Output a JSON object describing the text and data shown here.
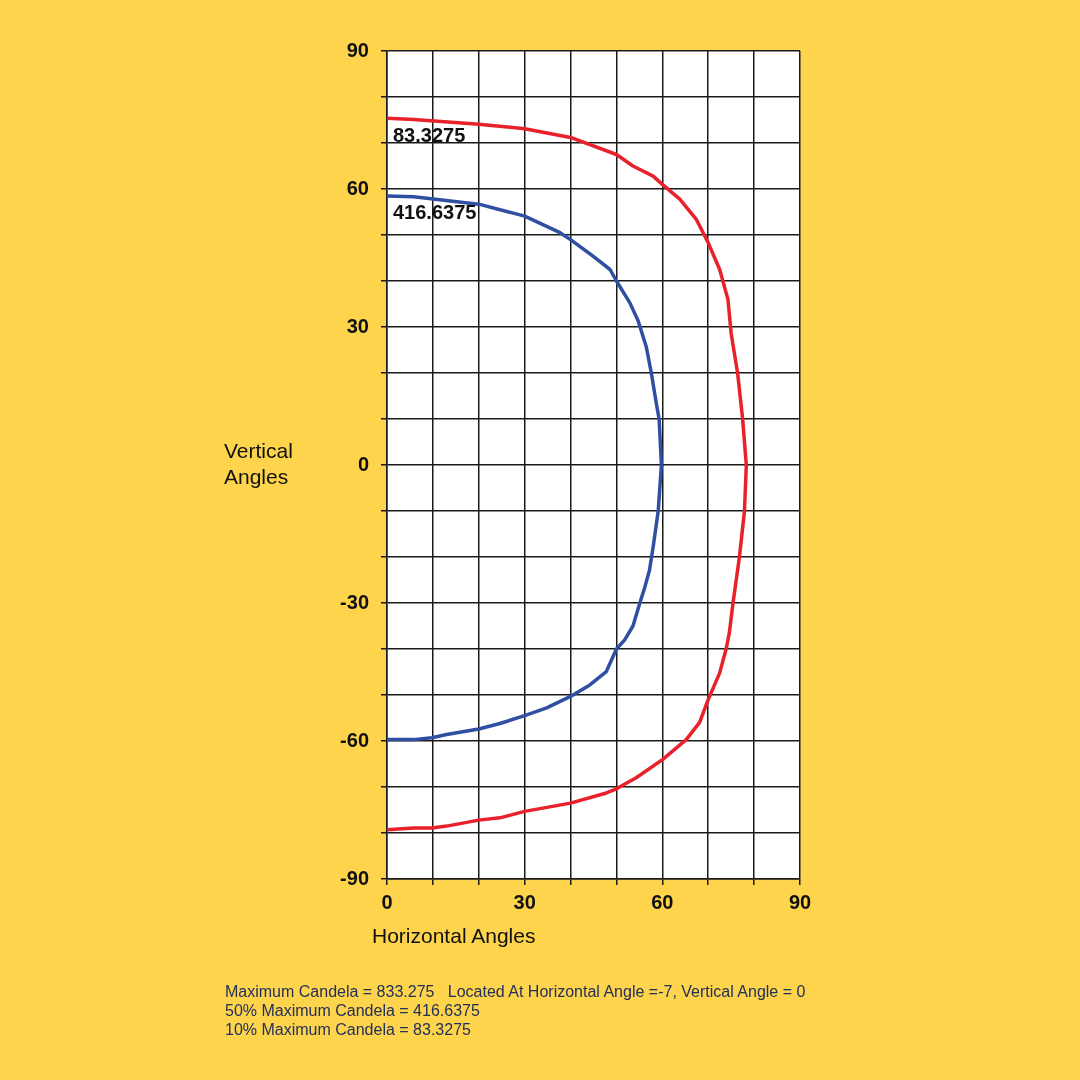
{
  "chart_data": {
    "type": "line",
    "xlabel": "Horizontal Angles",
    "ylabel": "Vertical Angles",
    "xlim": [
      0,
      90
    ],
    "xticks": [
      0,
      {
        "value": 10,
        "label": null
      },
      {
        "value": 20,
        "label": null
      },
      30,
      {
        "value": 40,
        "label": null
      },
      {
        "value": 50,
        "label": null
      },
      60,
      {
        "value": 70,
        "label": null
      },
      {
        "value": 80,
        "label": null
      },
      90
    ],
    "ylim": [
      -90,
      90
    ],
    "yticks": [
      -90,
      {
        "value": -80,
        "label": null
      },
      {
        "value": -70,
        "label": null
      },
      -60,
      {
        "value": -50,
        "label": null
      },
      {
        "value": -40,
        "label": null
      },
      -30,
      {
        "value": -20,
        "label": null
      },
      {
        "value": -10,
        "label": null
      },
      0,
      {
        "value": 10,
        "label": null
      },
      {
        "value": 20,
        "label": null
      },
      30,
      {
        "value": 40,
        "label": null
      },
      {
        "value": 50,
        "label": null
      },
      60,
      {
        "value": 70,
        "label": null
      },
      {
        "value": 80,
        "label": null
      },
      90
    ],
    "grid": true,
    "marker": "none",
    "line_style": "solid",
    "series": [
      {
        "name": "83.3275",
        "color": "#e8212b",
        "x": [
          0,
          5.8,
          20,
          30,
          40,
          50,
          53.6,
          58,
          60,
          63.8,
          67.4,
          70,
          72.5,
          74.3,
          75,
          76.4,
          77.5,
          78.3,
          77.9,
          76.8,
          75.4,
          74.6,
          73.9,
          72.5,
          70,
          68.1,
          65.2,
          60.1,
          54.3,
          50,
          47.8,
          40,
          30,
          24.6,
          20,
          13,
          9.8,
          5.8,
          0
        ],
        "values": [
          75.4,
          75.1,
          74.1,
          73.1,
          71.2,
          67.5,
          65,
          62.8,
          61,
          57.8,
          53.4,
          48.3,
          42.5,
          36,
          28.6,
          20,
          10,
          0,
          -10,
          -20,
          -30,
          -36.5,
          -40,
          -45.2,
          -51,
          -56,
          -59.7,
          -64,
          -68,
          -70.4,
          -71.3,
          -73.5,
          -75.3,
          -76.7,
          -77.2,
          -78.5,
          -78.9,
          -78.9,
          -79.3
        ]
      },
      {
        "name": "416.6375",
        "color": "#2f4fa2",
        "x": [
          0,
          5.8,
          20,
          30,
          37.7,
          40,
          44.9,
          48.6,
          50,
          52.9,
          54.7,
          56.5,
          57.6,
          58.7,
          59.3,
          59.8,
          59.1,
          58,
          57.2,
          56.2,
          55.1,
          53.6,
          51.8,
          50,
          47.8,
          44.2,
          40,
          34.8,
          30,
          24.6,
          20,
          13,
          9.8,
          5.8,
          0
        ],
        "values": [
          58.5,
          58.3,
          56.7,
          54.1,
          50.5,
          49,
          45.4,
          42.5,
          40,
          35.3,
          31.4,
          25.7,
          20,
          13.3,
          10,
          0,
          -10,
          -17.8,
          -22.9,
          -26.5,
          -30,
          -35,
          -38,
          -40,
          -44.9,
          -47.8,
          -50.3,
          -52.8,
          -54.5,
          -56.2,
          -57.4,
          -58.6,
          -59.3,
          -59.7,
          -59.7
        ]
      }
    ],
    "annotations": [
      "Maximum Candela = 833.275   Located At Horizontal Angle =-7, Vertical Angle = 0",
      "50% Maximum Candela = 416.6375",
      "10% Maximum Candela = 83.3275"
    ]
  }
}
